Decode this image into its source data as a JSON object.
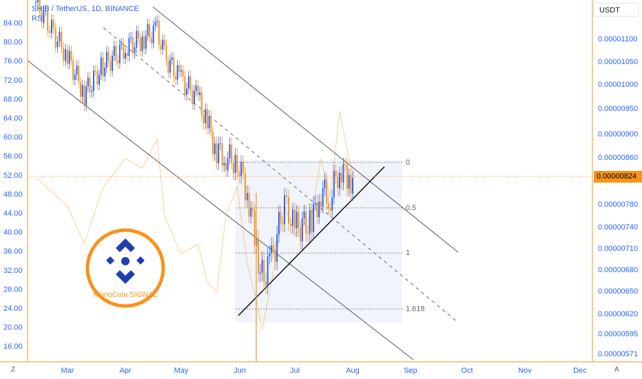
{
  "header": {
    "symbol_line": "SHIB / TetherUS, 1D, BINANCE",
    "indicator": "RSI"
  },
  "unit_button": "USDT",
  "current_price": "0.00000824",
  "corner_left": "Z",
  "corner_right": "A",
  "logo_text": "MonoCoin SIGNAL",
  "colors": {
    "up": "#2962ff",
    "down": "#f7931a",
    "rsi": "#f7931a",
    "fib_box": "#f0f3fa",
    "axis": "#f7931a"
  },
  "chart_data": {
    "type": "candlestick",
    "title": "SHIB / TetherUS, 1D, BINANCE",
    "x_tick_labels": [
      "Mar",
      "Apr",
      "May",
      "Jun",
      "Jul",
      "Aug",
      "Sep",
      "Oct",
      "Nov",
      "Dec"
    ],
    "left_axis_labels": [
      "84.00",
      "80.00",
      "76.00",
      "72.00",
      "68.00",
      "64.00",
      "60.00",
      "56.00",
      "52.00",
      "48.00",
      "44.00",
      "40.00",
      "36.00",
      "32.00",
      "28.00",
      "24.00",
      "20.00",
      "16.00"
    ],
    "right_axis_labels": [
      "0.00001100",
      "0.00001050",
      "0.00001000",
      "0.00000950",
      "0.00000900",
      "0.00000860",
      "0.00000824",
      "0.00000780",
      "0.00000740",
      "0.00000710",
      "0.00000680",
      "0.00000650",
      "0.00000620",
      "0.00000595",
      "0.00000571"
    ],
    "fib_levels": [
      {
        "label": "0",
        "value": 8.5e-06
      },
      {
        "label": "0.5",
        "value": 7.73e-06
      },
      {
        "label": "1",
        "value": 7.03e-06
      },
      {
        "label": "1.618",
        "value": 6.26e-06
      }
    ],
    "price_series": [
      {
        "date": "Feb 15",
        "close": 1.18e-05
      },
      {
        "date": "Mar 1",
        "close": 1.06e-05
      },
      {
        "date": "Mar 10",
        "close": 9.8e-06
      },
      {
        "date": "Mar 20",
        "close": 1.04e-05
      },
      {
        "date": "Apr 1",
        "close": 1.08e-05
      },
      {
        "date": "Apr 10",
        "close": 1.1e-05
      },
      {
        "date": "Apr 18",
        "close": 1.12e-05
      },
      {
        "date": "Apr 22",
        "close": 1.06e-05
      },
      {
        "date": "May 1",
        "close": 1.01e-05
      },
      {
        "date": "May 10",
        "close": 9.7e-06
      },
      {
        "date": "May 15",
        "close": 9.2e-06
      },
      {
        "date": "May 20",
        "close": 8.7e-06
      },
      {
        "date": "May 25",
        "close": 8.6e-06
      },
      {
        "date": "May 31",
        "close": 8.5e-06
      },
      {
        "date": "Jun 5",
        "close": 8e-06
      },
      {
        "date": "Jun 10",
        "close": 7.1e-06
      },
      {
        "date": "Jun 13",
        "close": 6.7e-06
      },
      {
        "date": "Jun 18",
        "close": 6.9e-06
      },
      {
        "date": "Jun 25",
        "close": 7.8e-06
      },
      {
        "date": "Jul 1",
        "close": 7.4e-06
      },
      {
        "date": "Jul 10",
        "close": 7.5e-06
      },
      {
        "date": "Jul 15",
        "close": 8e-06
      },
      {
        "date": "Jul 20",
        "close": 7.9e-06
      },
      {
        "date": "Jul 25",
        "close": 8.4e-06
      },
      {
        "date": "Jul 30",
        "close": 8.2e-06
      },
      {
        "date": "Aug 2",
        "close": 8.24e-06
      }
    ],
    "rsi_series": [
      {
        "date": "Feb 15",
        "value": 52
      },
      {
        "date": "Mar 1",
        "value": 46
      },
      {
        "date": "Mar 10",
        "value": 38
      },
      {
        "date": "Mar 20",
        "value": 50
      },
      {
        "date": "Apr 1",
        "value": 56
      },
      {
        "date": "Apr 10",
        "value": 54
      },
      {
        "date": "Apr 18",
        "value": 60
      },
      {
        "date": "Apr 22",
        "value": 44
      },
      {
        "date": "May 1",
        "value": 36
      },
      {
        "date": "May 10",
        "value": 38
      },
      {
        "date": "May 15",
        "value": 30
      },
      {
        "date": "May 20",
        "value": 28
      },
      {
        "date": "May 25",
        "value": 44
      },
      {
        "date": "May 31",
        "value": 50
      },
      {
        "date": "Jun 5",
        "value": 34
      },
      {
        "date": "Jun 10",
        "value": 26
      },
      {
        "date": "Jun 13",
        "value": 20
      },
      {
        "date": "Jun 18",
        "value": 30
      },
      {
        "date": "Jun 25",
        "value": 46
      },
      {
        "date": "Jul 1",
        "value": 40
      },
      {
        "date": "Jul 10",
        "value": 44
      },
      {
        "date": "Jul 15",
        "value": 56
      },
      {
        "date": "Jul 20",
        "value": 48
      },
      {
        "date": "Jul 25",
        "value": 66
      },
      {
        "date": "Jul 30",
        "value": 56
      },
      {
        "date": "Aug 2",
        "value": 52
      }
    ]
  }
}
